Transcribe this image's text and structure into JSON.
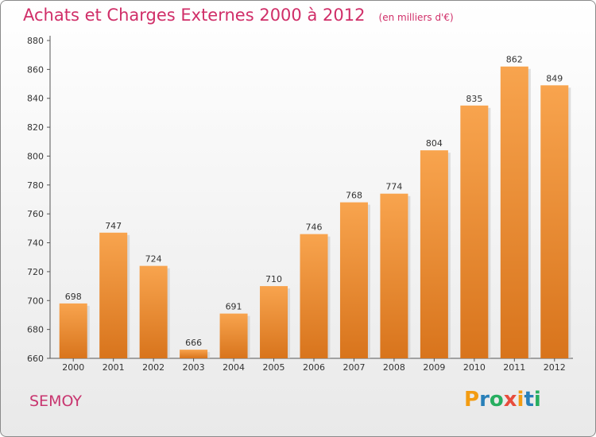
{
  "header": {
    "title": "Achats et Charges Externes 2000 à 2012",
    "unit": "(en milliers d'€)"
  },
  "footer": {
    "town": "SEMOY",
    "logo_letters": [
      "P",
      "r",
      "o",
      "x",
      "i",
      "t",
      "i"
    ],
    "logo_colors": [
      "#f39c12",
      "#2980b9",
      "#27ae60",
      "#e74c3c",
      "#f39c12",
      "#2980b9",
      "#27ae60"
    ]
  },
  "chart_data": {
    "type": "bar",
    "title": "Achats et Charges Externes 2000 à 2012",
    "unit": "(en milliers d'€)",
    "xlabel": "",
    "ylabel": "",
    "categories": [
      "2000",
      "2001",
      "2002",
      "2003",
      "2004",
      "2005",
      "2006",
      "2007",
      "2008",
      "2009",
      "2010",
      "2011",
      "2012"
    ],
    "values": [
      698,
      747,
      724,
      666,
      691,
      710,
      746,
      768,
      774,
      804,
      835,
      862,
      849
    ],
    "ylim": [
      660,
      880
    ],
    "yticks": [
      660,
      680,
      700,
      720,
      740,
      760,
      780,
      800,
      820,
      840,
      860,
      880
    ],
    "grid": false,
    "bar_color": "#f0922a"
  }
}
